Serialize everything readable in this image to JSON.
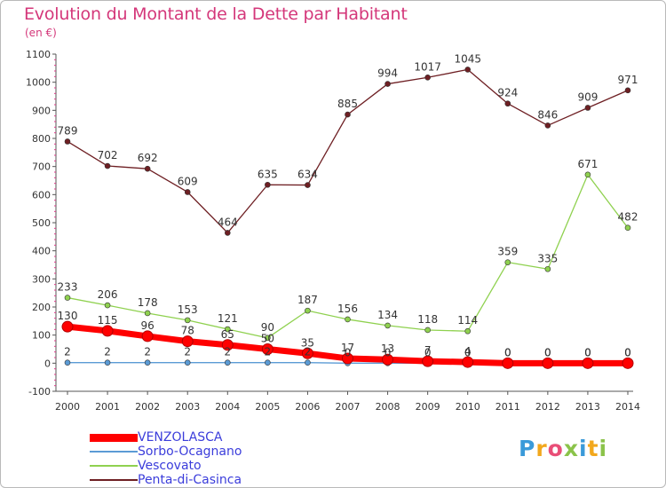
{
  "chart_data": {
    "type": "line",
    "title": "Evolution du Montant de la Dette par Habitant",
    "subtitle": "(en €)",
    "x": [
      "2000",
      "2001",
      "2002",
      "2003",
      "2004",
      "2005",
      "2006",
      "2007",
      "2008",
      "2009",
      "2010",
      "2011",
      "2012",
      "2013",
      "2014"
    ],
    "ylim": [
      -100,
      1100
    ],
    "yticks": [
      -100,
      0,
      100,
      200,
      300,
      400,
      500,
      600,
      700,
      800,
      900,
      1000,
      1100
    ],
    "grid": false,
    "legend_position": "bottom-left",
    "series": [
      {
        "name": "VENZOLASCA",
        "color": "#ff0000",
        "values": [
          130,
          115,
          96,
          78,
          65,
          50,
          35,
          17,
          13,
          7,
          4,
          0,
          0,
          0,
          0
        ],
        "labels": [
          "130",
          "115",
          "96",
          "78",
          "65",
          "50",
          "35",
          "17",
          "13",
          "7",
          "4",
          "0",
          "0",
          "0",
          "0"
        ]
      },
      {
        "name": "Sorbo-Ocagnano",
        "color": "#5b9bd5",
        "values": [
          2,
          2,
          2,
          2,
          2,
          2,
          2,
          0,
          0,
          0,
          0,
          0,
          0,
          0,
          0
        ],
        "labels": [
          "2",
          "2",
          "2",
          "2",
          "2",
          "2",
          "2",
          "0",
          "0",
          "0",
          "0",
          "0",
          "0",
          "0",
          "0"
        ]
      },
      {
        "name": "Vescovato",
        "color": "#8fd14f",
        "values": [
          233,
          206,
          178,
          153,
          121,
          90,
          187,
          156,
          134,
          118,
          114,
          359,
          335,
          671,
          482
        ],
        "labels": [
          "233",
          "206",
          "178",
          "153",
          "121",
          "90",
          "187",
          "156",
          "134",
          "118",
          "114",
          "359",
          "335",
          "671",
          "482"
        ]
      },
      {
        "name": "Penta-di-Casinca",
        "color": "#6e1f23",
        "values": [
          789,
          702,
          692,
          609,
          464,
          635,
          634,
          885,
          994,
          1017,
          1045,
          924,
          846,
          909,
          971
        ],
        "labels": [
          "789",
          "702",
          "692",
          "609",
          "464",
          "635",
          "634",
          "885",
          "994",
          "1017",
          "1045",
          "924",
          "846",
          "909",
          "971"
        ]
      }
    ]
  },
  "brand": {
    "letters": [
      "P",
      "r",
      "o",
      "x",
      "i",
      "t",
      "i"
    ],
    "colors": [
      "#3a9ad9",
      "#f2a81d",
      "#e94e77",
      "#8bc34a",
      "#3a9ad9",
      "#f2a81d",
      "#8bc34a"
    ]
  }
}
